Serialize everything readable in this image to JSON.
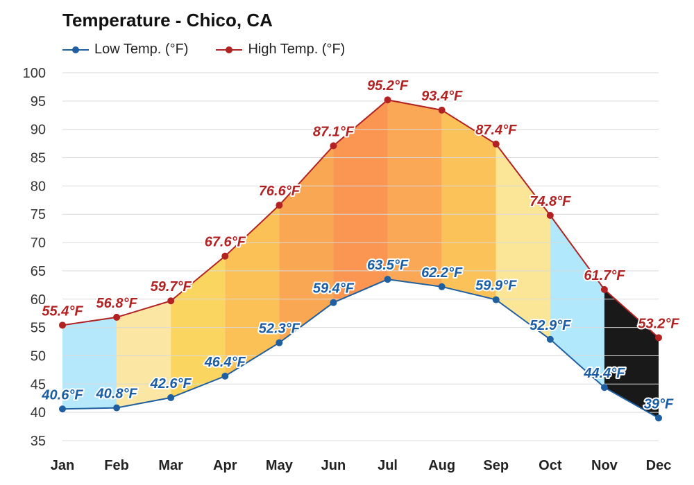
{
  "chart_data": {
    "type": "line",
    "title": "Temperature - Chico, CA",
    "categories": [
      "Jan",
      "Feb",
      "Mar",
      "Apr",
      "May",
      "Jun",
      "Jul",
      "Aug",
      "Sep",
      "Oct",
      "Nov",
      "Dec"
    ],
    "series": [
      {
        "name": "Low Temp. (°F)",
        "color": "#1f5fa0",
        "label_color": "#1a5da5",
        "values": [
          40.6,
          40.8,
          42.6,
          46.4,
          52.3,
          59.4,
          63.5,
          62.2,
          59.9,
          52.9,
          44.4,
          39
        ],
        "data_labels": [
          "40.6°F",
          "40.8°F",
          "42.6°F",
          "46.4°F",
          "52.3°F",
          "59.4°F",
          "63.5°F",
          "62.2°F",
          "59.9°F",
          "52.9°F",
          "44.4°F",
          "39°F"
        ]
      },
      {
        "name": "High Temp. (°F)",
        "color": "#b22222",
        "label_color": "#b22222",
        "values": [
          55.4,
          56.8,
          59.7,
          67.6,
          76.6,
          87.1,
          95.2,
          93.4,
          87.4,
          74.8,
          61.7,
          53.2
        ],
        "data_labels": [
          "55.4°F",
          "56.8°F",
          "59.7°F",
          "67.6°F",
          "76.6°F",
          "87.1°F",
          "95.2°F",
          "93.4°F",
          "87.4°F",
          "74.8°F",
          "61.7°F",
          "53.2°F"
        ]
      }
    ],
    "y_ticks": [
      "35",
      "40",
      "45",
      "50",
      "55",
      "60",
      "65",
      "70",
      "75",
      "80",
      "85",
      "90",
      "95",
      "100"
    ],
    "ylim": [
      35,
      100
    ],
    "grid": true,
    "legend_position": "top-left",
    "band_colors": [
      "#aee6fb",
      "#fbe39a",
      "#f9d24f",
      "#fbb944",
      "#fa9d40",
      "#f98b3f",
      "#fb9f44",
      "#fbbb47",
      "#fbe38d",
      "#a8e6fb"
    ]
  }
}
